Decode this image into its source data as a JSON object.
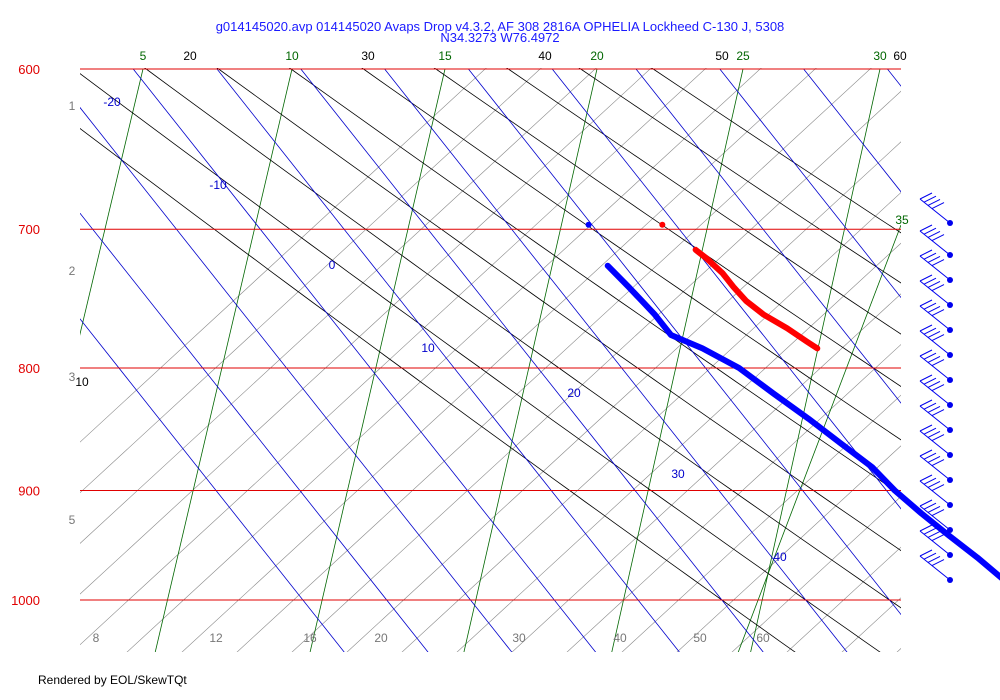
{
  "title_line1": "g014145020.avp 014145020 Avaps Drop v4.3.2, AF 308 2816A OPHELIA Lockheed C-130 J, 5308",
  "title_line2": "N34.3273 W76.4972",
  "footer": "Rendered by EOL/SkewTQt",
  "colors": {
    "isobar": "#e00000",
    "isotherm": "#0000cc",
    "dry_adiabat": "#000000",
    "moist_adiabat": "#888888",
    "mixing_ratio": "#006600",
    "temperature": "#ff0000",
    "dewpoint": "#0000ff",
    "wind": "#0000ee"
  },
  "chart_data": {
    "type": "skew-t",
    "y_axis": "pressure (hPa), log scale",
    "ylim": [
      1000,
      600
    ],
    "pressure_labels": [
      "600",
      "700",
      "800",
      "900",
      "1000"
    ],
    "isotherm_labels": [
      "-20",
      "-10",
      "0",
      "10",
      "20",
      "30",
      "40"
    ],
    "dry_adiabat_top_labels": [
      "20",
      "30",
      "40",
      "50",
      "60"
    ],
    "dry_adiabat_side_label": "10",
    "mixing_ratio_top_labels": [
      "5",
      "10",
      "15",
      "20",
      "25",
      "30"
    ],
    "mixing_ratio_side_label": "35",
    "bottom_labels": [
      "8",
      "12",
      "16",
      "20",
      "30",
      "40",
      "50",
      "60"
    ],
    "height_labels": [
      "1",
      "2",
      "3",
      "5"
    ],
    "temperature_profile": [
      {
        "p": 714,
        "t": 20.0
      },
      {
        "p": 720,
        "t": 20.5
      },
      {
        "p": 730,
        "t": 21.0
      },
      {
        "p": 740,
        "t": 21.0
      },
      {
        "p": 750,
        "t": 21.2
      },
      {
        "p": 760,
        "t": 22.0
      },
      {
        "p": 770,
        "t": 23.5
      },
      {
        "p": 780,
        "t": 24.6
      },
      {
        "p": 785,
        "t": 25.2
      }
    ],
    "dewpoint_profile": [
      {
        "p": 725,
        "t": 8.0
      },
      {
        "p": 740,
        "t": 8.5
      },
      {
        "p": 760,
        "t": 9.0
      },
      {
        "p": 775,
        "t": 9.0
      },
      {
        "p": 785,
        "t": 11.5
      },
      {
        "p": 800,
        "t": 14.0
      },
      {
        "p": 820,
        "t": 15.7
      },
      {
        "p": 840,
        "t": 17.5
      },
      {
        "p": 860,
        "t": 19.0
      },
      {
        "p": 880,
        "t": 20.5
      },
      {
        "p": 900,
        "t": 21.0
      },
      {
        "p": 920,
        "t": 22.0
      },
      {
        "p": 940,
        "t": 23.2
      },
      {
        "p": 960,
        "t": 24.5
      },
      {
        "p": 980,
        "t": 25.5
      },
      {
        "p": 990,
        "t": 26.5
      }
    ],
    "surface_markers": [
      {
        "series": "dewpoint",
        "p": 697,
        "t": 9.6
      },
      {
        "series": "temperature",
        "p": 697,
        "t": 18.4
      }
    ],
    "wind_barbs_hpa": [
      696,
      725,
      752,
      770,
      790,
      810,
      830,
      850,
      870,
      890,
      910,
      930,
      950,
      970,
      990
    ]
  }
}
